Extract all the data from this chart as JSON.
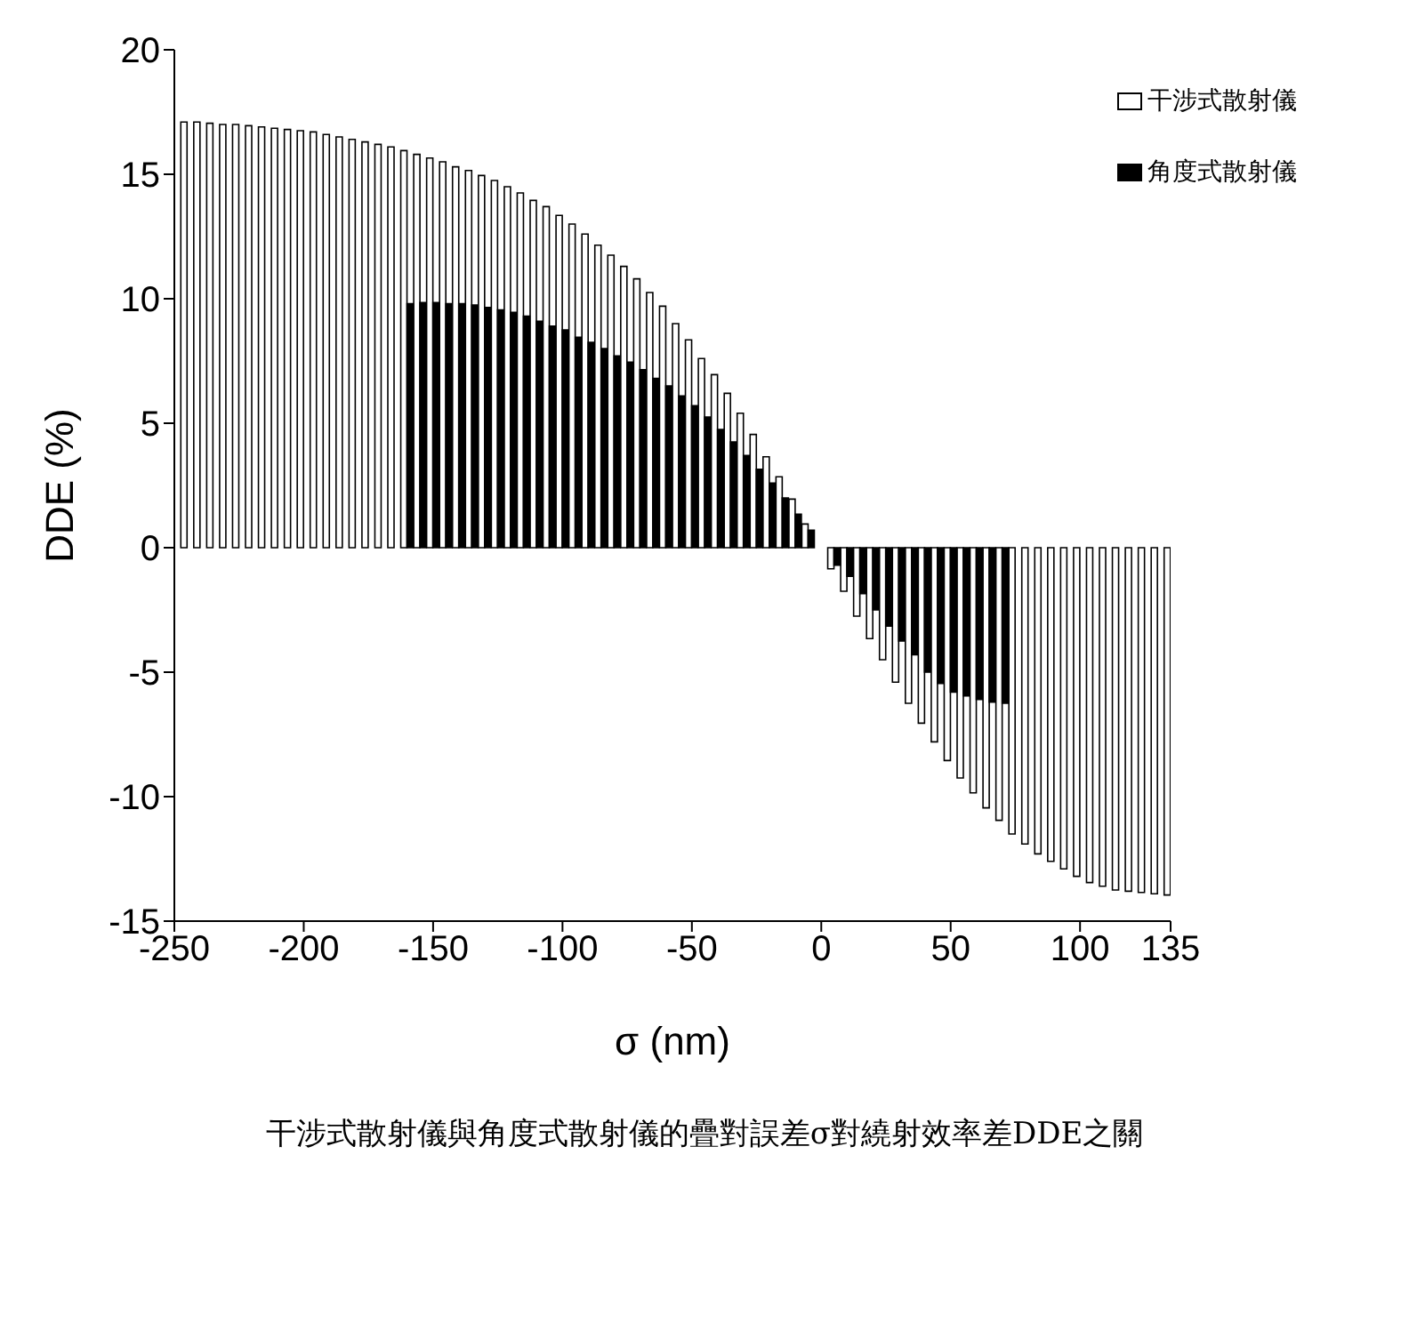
{
  "chart_data": {
    "type": "bar",
    "xlabel": "σ (nm)",
    "ylabel": "DDE (%)",
    "x": [
      -245,
      -240,
      -235,
      -230,
      -225,
      -220,
      -215,
      -210,
      -205,
      -200,
      -195,
      -190,
      -185,
      -180,
      -175,
      -170,
      -165,
      -160,
      -155,
      -150,
      -145,
      -140,
      -135,
      -130,
      -125,
      -120,
      -115,
      -110,
      -105,
      -100,
      -95,
      -90,
      -85,
      -80,
      -75,
      -70,
      -65,
      -60,
      -55,
      -50,
      -45,
      -40,
      -35,
      -30,
      -25,
      -20,
      -15,
      -10,
      -5,
      5,
      10,
      15,
      20,
      25,
      30,
      35,
      40,
      45,
      50,
      55,
      60,
      65,
      70,
      75,
      80,
      85,
      90,
      95,
      100,
      105,
      110,
      115,
      120,
      125,
      130,
      135
    ],
    "series": [
      {
        "name": "干涉式散射儀",
        "color": "#ffffff",
        "values": [
          17.1,
          17.1,
          17.05,
          17.0,
          17.0,
          16.95,
          16.9,
          16.85,
          16.8,
          16.75,
          16.7,
          16.6,
          16.5,
          16.4,
          16.3,
          16.2,
          16.1,
          15.95,
          15.8,
          15.65,
          15.5,
          15.3,
          15.15,
          14.95,
          14.75,
          14.5,
          14.25,
          13.95,
          13.7,
          13.35,
          13.0,
          12.6,
          12.15,
          11.75,
          11.3,
          10.8,
          10.25,
          9.7,
          9.0,
          8.35,
          7.6,
          6.95,
          6.2,
          5.4,
          4.55,
          3.65,
          2.85,
          1.95,
          0.95,
          -0.85,
          -1.75,
          -2.75,
          -3.65,
          -4.5,
          -5.4,
          -6.25,
          -7.05,
          -7.8,
          -8.55,
          -9.25,
          -9.85,
          -10.45,
          -10.95,
          -11.5,
          -11.9,
          -12.3,
          -12.6,
          -12.9,
          -13.2,
          -13.45,
          -13.6,
          -13.75,
          -13.8,
          -13.85,
          -13.9,
          -13.95
        ]
      },
      {
        "name": "角度式散射儀",
        "color": "#000000",
        "values": [
          null,
          null,
          null,
          null,
          null,
          null,
          null,
          null,
          null,
          null,
          null,
          null,
          null,
          null,
          null,
          null,
          null,
          9.8,
          9.85,
          9.85,
          9.8,
          9.8,
          9.75,
          9.65,
          9.55,
          9.45,
          9.3,
          9.1,
          8.9,
          8.75,
          8.45,
          8.25,
          8.0,
          7.7,
          7.45,
          7.15,
          6.8,
          6.5,
          6.1,
          5.7,
          5.25,
          4.75,
          4.25,
          3.7,
          3.15,
          2.6,
          2.0,
          1.35,
          0.7,
          -0.7,
          -1.15,
          -1.85,
          -2.5,
          -3.15,
          -3.75,
          -4.3,
          -5.0,
          -5.45,
          -5.8,
          -5.95,
          -6.1,
          -6.2,
          -6.25,
          null,
          null,
          null,
          null,
          null,
          null,
          null,
          null,
          null,
          null,
          null,
          null,
          null
        ]
      }
    ],
    "xlim": [
      -250,
      135
    ],
    "xticks": [
      -250,
      -200,
      -150,
      -100,
      -50,
      0,
      50,
      100,
      135
    ],
    "ylim": [
      -15,
      20
    ],
    "yticks": [
      -15,
      -10,
      -5,
      0,
      5,
      10,
      15,
      20
    ],
    "legend": "top right",
    "annotations": [
      "干涉式散射儀與角度式散射儀的疊對誤差σ對繞射效率差DDE之關"
    ]
  }
}
